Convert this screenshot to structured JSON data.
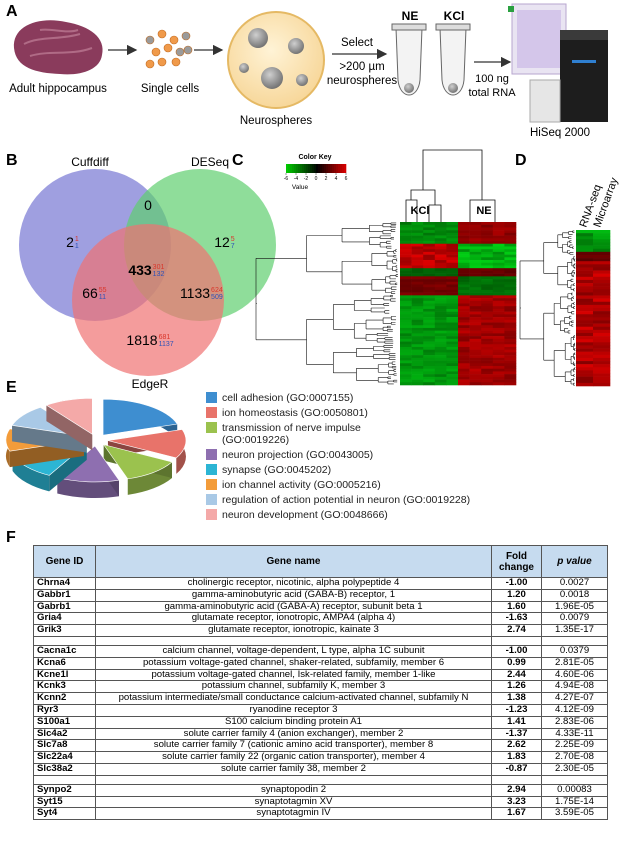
{
  "panel_labels": [
    "A",
    "B",
    "C",
    "D",
    "E",
    "F"
  ],
  "workflow": {
    "brain": "Adult hippocampus",
    "cells": "Single cells",
    "spheres": "Neurospheres",
    "select": [
      "Select",
      ">200 µm",
      "neurospheres"
    ],
    "tubes": [
      "NE",
      "KCl"
    ],
    "rna": [
      "100 ng",
      "total RNA"
    ],
    "sequencer": "HiSeq 2000"
  },
  "venn": {
    "sets": [
      "Cuffdiff",
      "DESeq",
      "EdgeR"
    ],
    "regions": [
      {
        "total": 2,
        "up": 1,
        "down": 1
      },
      {
        "total": 0
      },
      {
        "total": 12,
        "up": 5,
        "down": 7
      },
      {
        "total": 433,
        "up": 301,
        "down": 132
      },
      {
        "total": 66,
        "up": 55,
        "down": 11
      },
      {
        "total": 1133,
        "up": 624,
        "down": 509
      },
      {
        "total": 1818,
        "up": 681,
        "down": 1137
      }
    ]
  },
  "heatmap": {
    "key_title": "Color Key",
    "key_label": "Value",
    "key_ticks": [
      -6,
      -4,
      -2,
      0,
      2,
      4,
      6
    ],
    "groups": [
      "KCl",
      "NE"
    ]
  },
  "comparison": {
    "columns": [
      "RNA-seq",
      "Microarray"
    ]
  },
  "go_terms": [
    {
      "label": "cell adhesion (GO:0007155)",
      "color": "#3e8ed0"
    },
    {
      "label": "ion homeostasis (GO:0050801)",
      "color": "#e8736a"
    },
    {
      "label": "transmission of nerve impulse (GO:0019226)",
      "color": "#9bc24e"
    },
    {
      "label": "neuron projection (GO:0043005)",
      "color": "#8e6fb0"
    },
    {
      "label": "synapse (GO:0045202)",
      "color": "#2cb5d4"
    },
    {
      "label": "ion channel activity (GO:0005216)",
      "color": "#f39c3a"
    },
    {
      "label": "regulation of action potential in neuron (GO:0019228)",
      "color": "#a9c9e6"
    },
    {
      "label": "neuron development (GO:0048666)",
      "color": "#f4a9a8"
    }
  ],
  "table": {
    "header": [
      "Gene ID",
      "Gene name",
      "Fold change",
      "p value"
    ],
    "groups": [
      [
        [
          "Chrna4",
          "cholinergic receptor, nicotinic, alpha polypeptide 4",
          "-1.00",
          "0.0027"
        ],
        [
          "Gabbr1",
          "gamma-aminobutyric acid (GABA-B) receptor, 1",
          "1.20",
          "0.0018"
        ],
        [
          "Gabrb1",
          "gamma-aminobutyric acid (GABA-A) receptor, subunit beta 1",
          "1.60",
          "1.96E-05"
        ],
        [
          "Gria4",
          "glutamate receptor, ionotropic, AMPA4 (alpha 4)",
          "-1.63",
          "0.0079"
        ],
        [
          "Grik3",
          "glutamate receptor, ionotropic, kainate 3",
          "2.74",
          "1.35E-17"
        ]
      ],
      [
        [
          "Cacna1c",
          "calcium channel, voltage-dependent, L type, alpha 1C subunit",
          "-1.00",
          "0.0379"
        ],
        [
          "Kcna6",
          "potassium voltage-gated channel, shaker-related, subfamily, member 6",
          "0.99",
          "2.81E-05"
        ],
        [
          "Kcne1l",
          "potassium voltage-gated channel, Isk-related family, member 1-like",
          "2.44",
          "4.60E-06"
        ],
        [
          "Kcnk3",
          "potassium channel, subfamily K, member 3",
          "1.26",
          "4.94E-08"
        ],
        [
          "Kcnn2",
          "potassium intermediate/small conductance calcium-activated channel, subfamily N",
          "1.38",
          "4.27E-07"
        ],
        [
          "Ryr3",
          "ryanodine receptor 3",
          "-1.23",
          "4.12E-09"
        ],
        [
          "S100a1",
          "S100 calcium binding protein A1",
          "1.41",
          "2.83E-06"
        ],
        [
          "Slc4a2",
          "solute carrier family 4 (anion exchanger), member 2",
          "-1.37",
          "4.33E-11"
        ],
        [
          "Slc7a8",
          "solute carrier family 7 (cationic amino acid transporter), member 8",
          "2.62",
          "2.25E-09"
        ],
        [
          "Slc22a4",
          "solute carrier family 22 (organic cation transporter), member 4",
          "1.83",
          "2.70E-08"
        ],
        [
          "Slc38a2",
          "solute carrier family 38, member 2",
          "-0.87",
          "2.30E-05"
        ]
      ],
      [
        [
          "Synpo2",
          "synaptopodin 2",
          "2.94",
          "0.00083"
        ],
        [
          "Syt15",
          "synaptotagmin XV",
          "3.23",
          "1.75E-14"
        ],
        [
          "Syt4",
          "synaptotagmin IV",
          "1.67",
          "3.59E-05"
        ]
      ]
    ]
  }
}
